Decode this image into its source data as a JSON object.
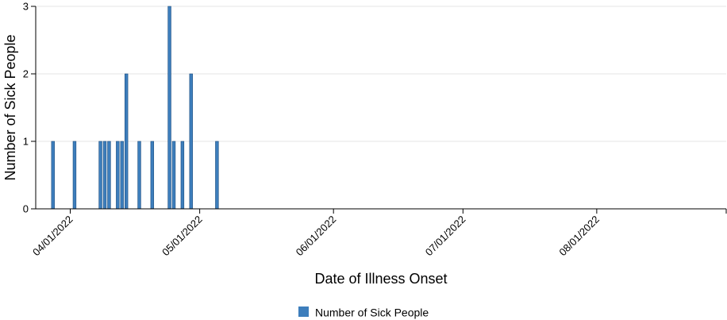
{
  "chart_data": {
    "type": "bar",
    "title": "",
    "xlabel": "Date of Illness Onset",
    "ylabel": "Number of Sick People",
    "ylim": [
      0,
      3
    ],
    "xlim": [
      "2022-03-24",
      "2022-08-31"
    ],
    "y_ticks": [
      0,
      1,
      2,
      3
    ],
    "x_ticks": [
      {
        "date": "2022-04-01",
        "label": "04/01/2022"
      },
      {
        "date": "2022-05-01",
        "label": "05/01/2022"
      },
      {
        "date": "2022-06-01",
        "label": "06/01/2022"
      },
      {
        "date": "2022-07-01",
        "label": "07/01/2022"
      },
      {
        "date": "2022-08-01",
        "label": "08/01/2022"
      }
    ],
    "grid": true,
    "legend_position": "bottom-center",
    "bar_color": "#3d7ebc",
    "series": [
      {
        "name": "Number of Sick People",
        "x": [
          "2022-03-28",
          "2022-04-02",
          "2022-04-08",
          "2022-04-09",
          "2022-04-10",
          "2022-04-12",
          "2022-04-13",
          "2022-04-14",
          "2022-04-17",
          "2022-04-20",
          "2022-04-24",
          "2022-04-25",
          "2022-04-27",
          "2022-04-29",
          "2022-05-05"
        ],
        "values": [
          1,
          1,
          1,
          1,
          1,
          1,
          1,
          2,
          1,
          1,
          3,
          1,
          1,
          2,
          1
        ]
      }
    ]
  }
}
